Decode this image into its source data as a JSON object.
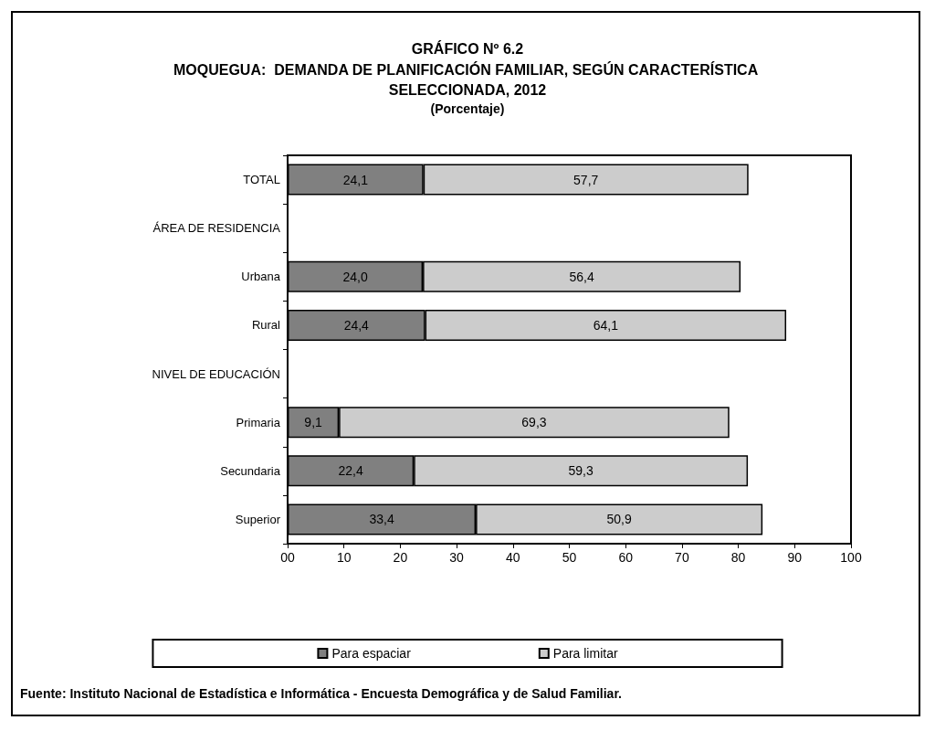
{
  "chart_data": {
    "type": "bar",
    "orientation": "horizontal",
    "stacked": true,
    "title": "GRÁFICO Nº 6.2",
    "subtitle": "MOQUEGUA:  DEMANDA DE PLANIFICACIÓN FAMILIAR, SEGÚN CARACTERÍSTICA SELECCIONADA, 2012",
    "annotations": [
      "(Porcentaje)",
      "Fuente: Instituto Nacional de Estadística e Informática - Encuesta Demográfica y de Salud Familiar."
    ],
    "categories": [
      "TOTAL",
      "ÁREA DE RESIDENCIA",
      "Urbana",
      "Rural",
      "NIVEL DE EDUCACIÓN",
      "Primaria",
      "Secundaria",
      "Superior"
    ],
    "series": [
      {
        "name": "Para espaciar",
        "color": "#808080",
        "values": [
          24.1,
          null,
          24.0,
          24.4,
          null,
          9.1,
          22.4,
          33.4
        ],
        "value_labels": [
          "24,1",
          null,
          "24,0",
          "24,4",
          null,
          "9,1",
          "22,4",
          "33,4"
        ]
      },
      {
        "name": "Para limitar",
        "color": "#cccccc",
        "values": [
          57.7,
          null,
          56.4,
          64.1,
          null,
          69.3,
          59.3,
          50.9
        ],
        "value_labels": [
          "57,7",
          null,
          "56,4",
          "64,1",
          null,
          "69,3",
          "59,3",
          "50,9"
        ]
      }
    ],
    "xlim": [
      0,
      100
    ],
    "xticks": [
      {
        "value": 0,
        "label": "00"
      },
      10,
      20,
      30,
      40,
      50,
      60,
      70,
      80,
      90,
      100
    ],
    "grid": false,
    "legend": "bottom"
  }
}
